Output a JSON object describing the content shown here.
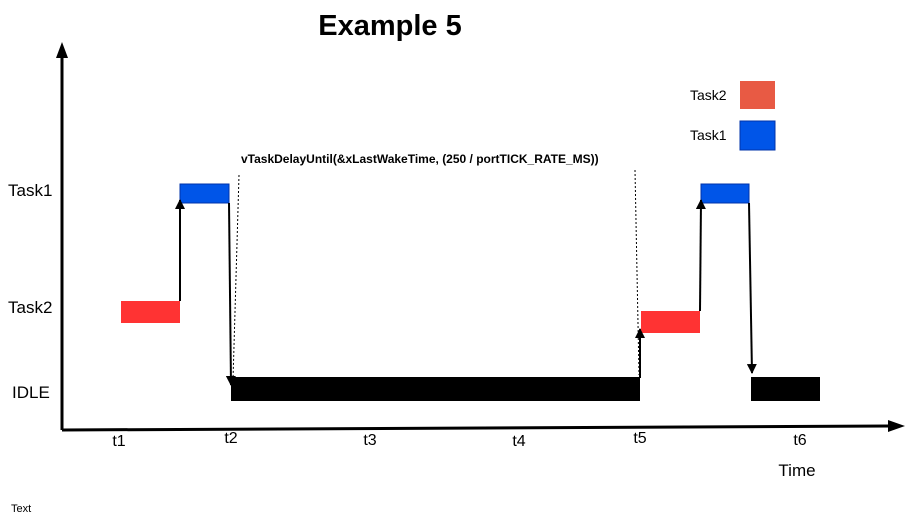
{
  "title": "Example 5",
  "annotation": "vTaskDelayUntil(&xLastWakeTime, (250 / portTICK_RATE_MS))",
  "axis": {
    "x_label": "Time",
    "ticks": [
      "t1",
      "t2",
      "t3",
      "t4",
      "t5",
      "t6"
    ]
  },
  "lanes": {
    "task1": "Task1",
    "task2": "Task2",
    "idle": "IDLE"
  },
  "legend": {
    "task2": "Task2",
    "task1": "Task1"
  },
  "footer_text": "Text",
  "colors": {
    "task1": "#0055e8",
    "task1_border": "#0033aa",
    "task2": "#ff3333",
    "task2_legend": "#e85a44",
    "idle": "#000000"
  }
}
